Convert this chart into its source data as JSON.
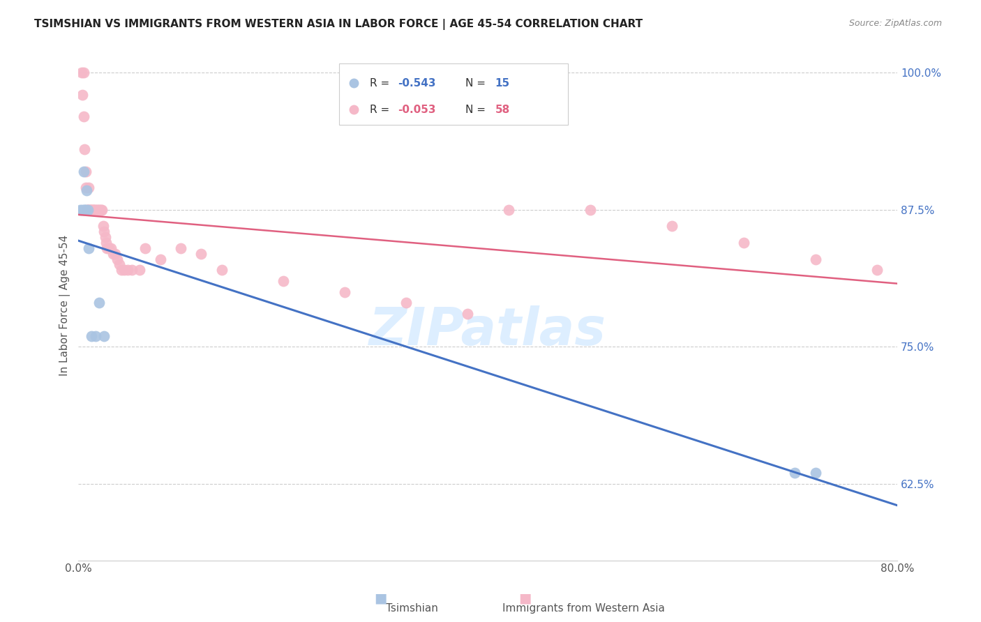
{
  "title": "TSIMSHIAN VS IMMIGRANTS FROM WESTERN ASIA IN LABOR FORCE | AGE 45-54 CORRELATION CHART",
  "source": "Source: ZipAtlas.com",
  "ylabel": "In Labor Force | Age 45-54",
  "xlim": [
    0.0,
    0.8
  ],
  "ylim": [
    0.555,
    1.02
  ],
  "xticks": [
    0.0,
    0.1,
    0.2,
    0.3,
    0.4,
    0.5,
    0.6,
    0.7,
    0.8
  ],
  "yticks": [
    0.625,
    0.75,
    0.875,
    1.0
  ],
  "ytick_labels": [
    "62.5%",
    "75.0%",
    "87.5%",
    "100.0%"
  ],
  "xtick_labels_show": [
    "0.0%",
    "80.0%"
  ],
  "legend_blue_r": "R = -0.543",
  "legend_blue_n": "N = 15",
  "legend_pink_r": "R = -0.053",
  "legend_pink_n": "N = 58",
  "blue_scatter_color": "#aac4e2",
  "pink_scatter_color": "#f5b8c8",
  "blue_line_color": "#4472C4",
  "pink_line_color": "#E06080",
  "blue_r_color": "#4472C4",
  "pink_r_color": "#E06080",
  "n_color": "#333333",
  "watermark_color": "#ddeeff",
  "tsimshian_x": [
    0.002,
    0.004,
    0.005,
    0.006,
    0.006,
    0.007,
    0.008,
    0.009,
    0.01,
    0.013,
    0.017,
    0.02,
    0.025,
    0.7,
    0.72
  ],
  "tsimshian_y": [
    0.875,
    0.875,
    0.91,
    0.875,
    0.875,
    0.875,
    0.893,
    0.875,
    0.84,
    0.76,
    0.76,
    0.79,
    0.76,
    0.635,
    0.635
  ],
  "western_asia_x": [
    0.003,
    0.004,
    0.005,
    0.005,
    0.006,
    0.007,
    0.007,
    0.008,
    0.009,
    0.009,
    0.01,
    0.01,
    0.011,
    0.012,
    0.012,
    0.013,
    0.014,
    0.015,
    0.015,
    0.016,
    0.017,
    0.018,
    0.019,
    0.02,
    0.021,
    0.022,
    0.023,
    0.024,
    0.025,
    0.026,
    0.027,
    0.028,
    0.03,
    0.032,
    0.034,
    0.036,
    0.038,
    0.04,
    0.042,
    0.045,
    0.048,
    0.052,
    0.06,
    0.065,
    0.08,
    0.1,
    0.12,
    0.14,
    0.2,
    0.26,
    0.32,
    0.38,
    0.42,
    0.5,
    0.58,
    0.65,
    0.72,
    0.78
  ],
  "western_asia_y": [
    1.0,
    0.98,
    1.0,
    0.96,
    0.93,
    0.91,
    0.895,
    0.875,
    0.875,
    0.875,
    0.875,
    0.895,
    0.875,
    0.875,
    0.875,
    0.875,
    0.875,
    0.875,
    0.875,
    0.875,
    0.875,
    0.875,
    0.875,
    0.875,
    0.875,
    0.875,
    0.875,
    0.86,
    0.855,
    0.85,
    0.845,
    0.84,
    0.84,
    0.84,
    0.835,
    0.835,
    0.83,
    0.825,
    0.82,
    0.82,
    0.82,
    0.82,
    0.82,
    0.84,
    0.83,
    0.84,
    0.835,
    0.82,
    0.81,
    0.8,
    0.79,
    0.78,
    0.875,
    0.875,
    0.86,
    0.845,
    0.83,
    0.82
  ]
}
